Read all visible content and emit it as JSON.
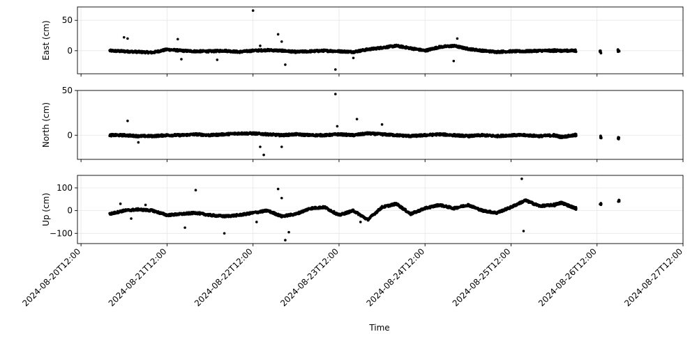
{
  "chart_data": [
    {
      "type": "scatter",
      "ylabel": "East (cm)",
      "xlim": [
        "2024-08-20T11:00",
        "2024-08-27T12:00"
      ],
      "ylim": [
        -38,
        72
      ],
      "y_ticks": [
        0,
        50
      ],
      "grid": true,
      "color": "#000000",
      "series": [
        {
          "x": [
            "2024-08-20T20:00",
            "2024-08-21T00:00",
            "2024-08-21T04:00",
            "2024-08-21T08:00",
            "2024-08-21T12:00",
            "2024-08-21T16:00",
            "2024-08-21T20:00",
            "2024-08-22T00:00",
            "2024-08-22T04:00",
            "2024-08-22T08:00",
            "2024-08-22T12:00",
            "2024-08-22T16:00",
            "2024-08-22T20:00",
            "2024-08-23T00:00",
            "2024-08-23T04:00",
            "2024-08-23T08:00",
            "2024-08-23T12:00",
            "2024-08-23T16:00",
            "2024-08-23T20:00",
            "2024-08-24T00:00",
            "2024-08-24T04:00",
            "2024-08-24T08:00",
            "2024-08-24T12:00",
            "2024-08-24T16:00",
            "2024-08-24T20:00",
            "2024-08-25T00:00",
            "2024-08-25T04:00",
            "2024-08-25T08:00",
            "2024-08-25T12:00",
            "2024-08-25T16:00",
            "2024-08-25T20:00",
            "2024-08-26T00:00",
            "2024-08-26T02:00",
            "2024-08-26T06:00",
            "2024-08-26T13:00",
            "2024-08-26T18:00"
          ],
          "y": [
            0,
            -1,
            -2,
            -3,
            2,
            0,
            -1,
            -1,
            0,
            -2,
            0,
            1,
            0,
            -2,
            -1,
            0,
            -1,
            -2,
            2,
            5,
            8,
            4,
            0,
            6,
            8,
            3,
            0,
            -2,
            -1,
            -1,
            0,
            0,
            0,
            0,
            -2,
            0
          ]
        },
        {
          "x": [
            "2024-08-21T00:00",
            "2024-08-21T01:00",
            "2024-08-21T15:00",
            "2024-08-21T16:00",
            "2024-08-22T02:00",
            "2024-08-22T12:00",
            "2024-08-22T14:00",
            "2024-08-22T19:00",
            "2024-08-22T20:00",
            "2024-08-22T21:00",
            "2024-08-23T11:00",
            "2024-08-23T16:00",
            "2024-08-24T20:00",
            "2024-08-24T21:00"
          ],
          "y": [
            22,
            20,
            19,
            -14,
            -15,
            66,
            8,
            27,
            15,
            -23,
            -31,
            -12,
            -17,
            20
          ]
        }
      ]
    },
    {
      "type": "scatter",
      "ylabel": "North (cm)",
      "xlim": [
        "2024-08-20T11:00",
        "2024-08-27T12:00"
      ],
      "ylim": [
        -27,
        50
      ],
      "y_ticks": [
        0,
        50
      ],
      "grid": true,
      "color": "#000000",
      "series": [
        {
          "x": [
            "2024-08-20T20:00",
            "2024-08-21T00:00",
            "2024-08-21T04:00",
            "2024-08-21T08:00",
            "2024-08-21T12:00",
            "2024-08-21T16:00",
            "2024-08-21T20:00",
            "2024-08-22T00:00",
            "2024-08-22T04:00",
            "2024-08-22T08:00",
            "2024-08-22T12:00",
            "2024-08-22T16:00",
            "2024-08-22T20:00",
            "2024-08-23T00:00",
            "2024-08-23T04:00",
            "2024-08-23T08:00",
            "2024-08-23T12:00",
            "2024-08-23T16:00",
            "2024-08-23T20:00",
            "2024-08-24T00:00",
            "2024-08-24T04:00",
            "2024-08-24T08:00",
            "2024-08-24T12:00",
            "2024-08-24T16:00",
            "2024-08-24T20:00",
            "2024-08-25T00:00",
            "2024-08-25T04:00",
            "2024-08-25T08:00",
            "2024-08-25T12:00",
            "2024-08-25T16:00",
            "2024-08-25T20:00",
            "2024-08-26T00:00",
            "2024-08-26T02:00",
            "2024-08-26T06:00",
            "2024-08-26T13:00",
            "2024-08-26T18:00"
          ],
          "y": [
            0,
            0,
            -1,
            -1,
            0,
            0,
            1,
            0,
            1,
            2,
            2,
            1,
            0,
            1,
            0,
            0,
            1,
            0,
            2,
            1,
            0,
            -1,
            0,
            1,
            0,
            -1,
            0,
            -1,
            0,
            0,
            -1,
            0,
            -2,
            0,
            -2,
            -3
          ]
        },
        {
          "x": [
            "2024-08-21T01:00",
            "2024-08-21T04:00",
            "2024-08-22T14:00",
            "2024-08-22T15:00",
            "2024-08-22T20:00",
            "2024-08-23T11:00",
            "2024-08-23T11:30",
            "2024-08-23T17:00",
            "2024-08-24T00:00"
          ],
          "y": [
            16,
            -8,
            -13,
            -22,
            -13,
            46,
            10,
            18,
            12
          ]
        }
      ]
    },
    {
      "type": "scatter",
      "ylabel": "Up (cm)",
      "xlim": [
        "2024-08-20T11:00",
        "2024-08-27T12:00"
      ],
      "ylim": [
        -145,
        155
      ],
      "y_ticks": [
        -100,
        0,
        100
      ],
      "grid": true,
      "color": "#000000",
      "series": [
        {
          "x": [
            "2024-08-20T20:00",
            "2024-08-21T00:00",
            "2024-08-21T04:00",
            "2024-08-21T08:00",
            "2024-08-21T12:00",
            "2024-08-21T16:00",
            "2024-08-21T20:00",
            "2024-08-22T00:00",
            "2024-08-22T04:00",
            "2024-08-22T08:00",
            "2024-08-22T12:00",
            "2024-08-22T16:00",
            "2024-08-22T20:00",
            "2024-08-23T00:00",
            "2024-08-23T04:00",
            "2024-08-23T08:00",
            "2024-08-23T12:00",
            "2024-08-23T16:00",
            "2024-08-23T20:00",
            "2024-08-24T00:00",
            "2024-08-24T04:00",
            "2024-08-24T08:00",
            "2024-08-24T12:00",
            "2024-08-24T16:00",
            "2024-08-24T20:00",
            "2024-08-25T00:00",
            "2024-08-25T04:00",
            "2024-08-25T08:00",
            "2024-08-25T12:00",
            "2024-08-25T16:00",
            "2024-08-25T20:00",
            "2024-08-26T00:00",
            "2024-08-26T02:00",
            "2024-08-26T06:00",
            "2024-08-26T13:00",
            "2024-08-26T18:00"
          ],
          "y": [
            -15,
            0,
            5,
            0,
            -20,
            -15,
            -10,
            -20,
            -25,
            -20,
            -10,
            0,
            -25,
            -15,
            10,
            15,
            -20,
            0,
            -40,
            15,
            30,
            -15,
            10,
            25,
            10,
            25,
            0,
            -10,
            15,
            45,
            20,
            25,
            35,
            10,
            30,
            45
          ]
        },
        {
          "x": [
            "2024-08-20T23:00",
            "2024-08-21T02:00",
            "2024-08-21T06:00",
            "2024-08-21T17:00",
            "2024-08-21T20:00",
            "2024-08-22T04:00",
            "2024-08-22T13:00",
            "2024-08-22T19:00",
            "2024-08-22T20:00",
            "2024-08-22T21:00",
            "2024-08-22T22:00",
            "2024-08-23T18:00",
            "2024-08-25T15:00",
            "2024-08-25T15:30"
          ],
          "y": [
            30,
            -35,
            25,
            -75,
            90,
            -100,
            -50,
            95,
            55,
            -130,
            -95,
            -50,
            140,
            -90
          ]
        }
      ]
    }
  ],
  "x_ticks": [
    "2024-08-20T12:00",
    "2024-08-21T12:00",
    "2024-08-22T12:00",
    "2024-08-23T12:00",
    "2024-08-24T12:00",
    "2024-08-25T12:00",
    "2024-08-26T12:00",
    "2024-08-27T12:00"
  ],
  "xlabel": "Time"
}
